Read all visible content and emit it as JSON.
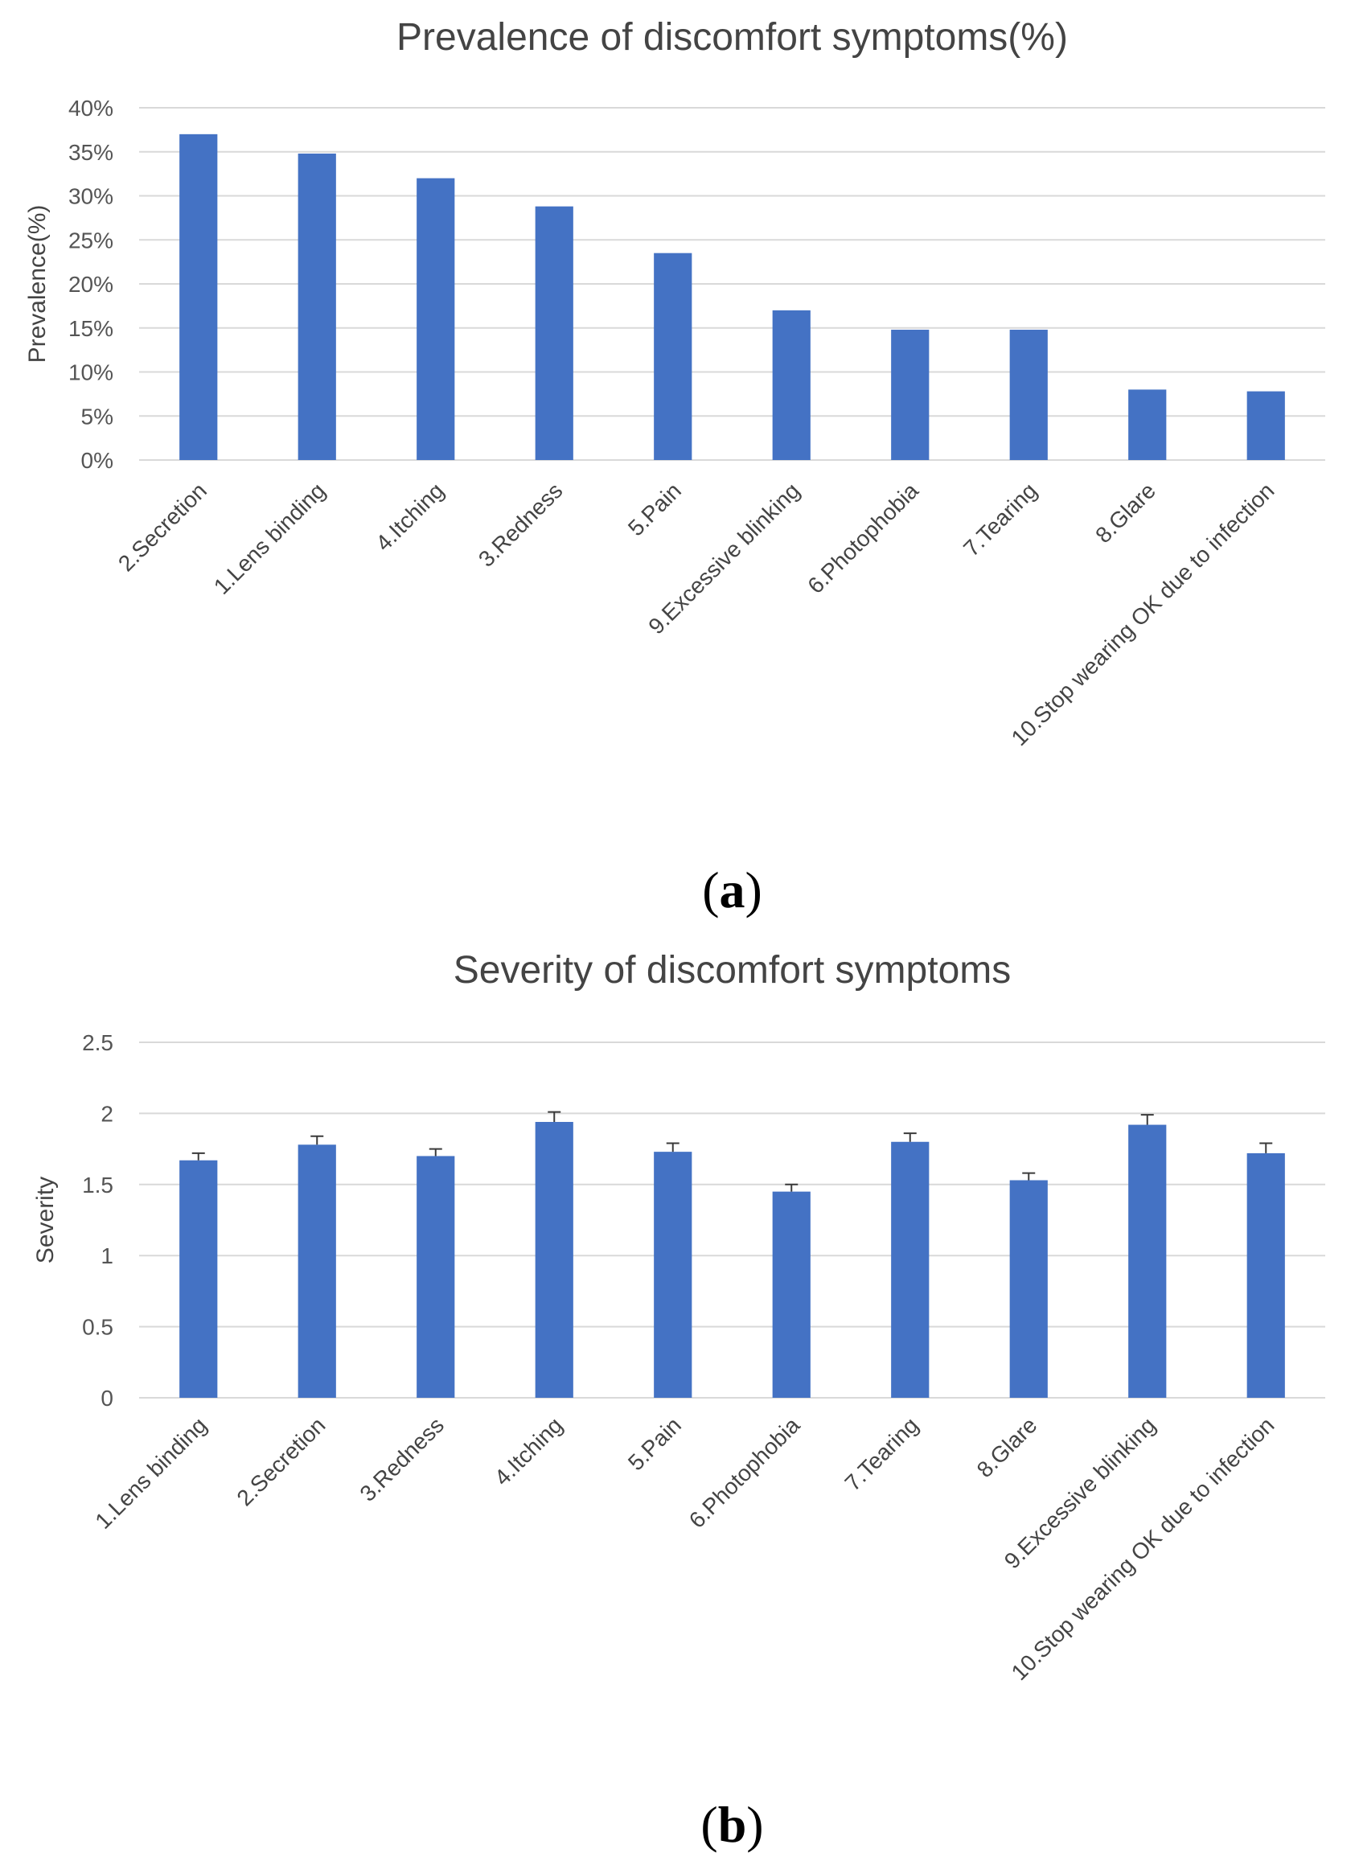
{
  "chart_data": [
    {
      "type": "bar",
      "panel_label_open": "(",
      "panel_label_letter": "a",
      "panel_label_close": ")",
      "title": "Prevalence of discomfort symptoms(%)",
      "xlabel": "",
      "ylabel": "Prevalence(%)",
      "ylim": [
        0,
        40
      ],
      "yticks": [
        "0%",
        "5%",
        "10%",
        "15%",
        "20%",
        "25%",
        "30%",
        "35%",
        "40%"
      ],
      "grid": true,
      "color": "#4472c4",
      "categories": [
        "2.Secretion",
        "1.Lens binding",
        "4.Itching",
        "3.Redness",
        "5.Pain",
        "9.Excessive blinking",
        "6.Photophobia",
        "7.Tearing",
        "8.Glare",
        "10.Stop wearing OK due to infection"
      ],
      "values": [
        37,
        34.8,
        32,
        28.8,
        23.5,
        17,
        14.8,
        14.8,
        8,
        7.8
      ]
    },
    {
      "type": "bar",
      "panel_label_open": "(",
      "panel_label_letter": "b",
      "panel_label_close": ")",
      "title": "Severity of discomfort symptoms",
      "xlabel": "",
      "ylabel": "Severity",
      "ylim": [
        0,
        2.5
      ],
      "yticks": [
        "0",
        "0.5",
        "1",
        "1.5",
        "2",
        "2.5"
      ],
      "grid": true,
      "color": "#4472c4",
      "categories": [
        "1.Lens binding",
        "2.Secretion",
        "3.Redness",
        "4.Itching",
        "5.Pain",
        "6.Photophobia",
        "7.Tearing",
        "8.Glare",
        "9.Excessive blinking",
        "10.Stop wearing OK due to infection"
      ],
      "values": [
        1.67,
        1.78,
        1.7,
        1.94,
        1.73,
        1.45,
        1.8,
        1.53,
        1.92,
        1.72
      ],
      "errors": [
        0.05,
        0.06,
        0.05,
        0.07,
        0.06,
        0.05,
        0.06,
        0.05,
        0.07,
        0.07
      ]
    }
  ]
}
